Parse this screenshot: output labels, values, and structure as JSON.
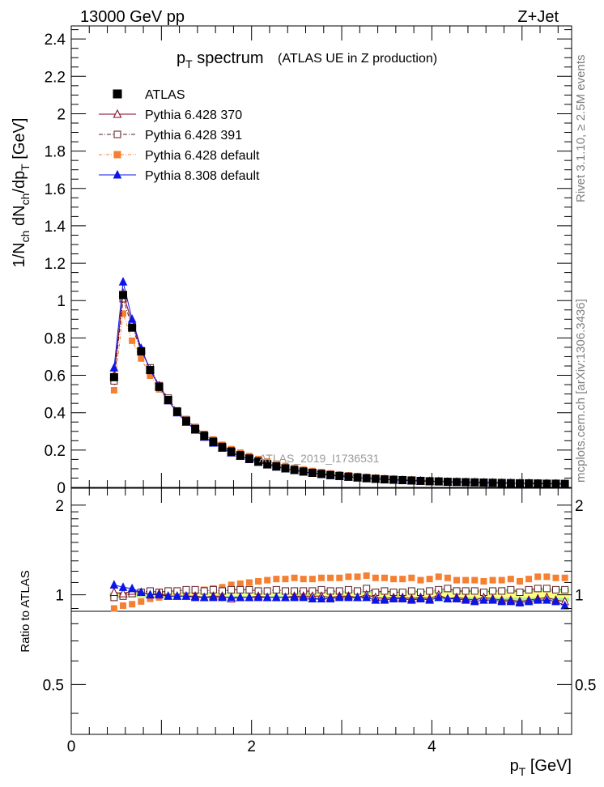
{
  "header": {
    "left": "13000 GeV pp",
    "right": "Z+Jet"
  },
  "side": {
    "top": "Rivet 3.1.10, ≥ 2.5M events",
    "bottom": "mcplots.cern.ch [arXiv:1306.3436]"
  },
  "chart_data": [
    {
      "type": "scatter",
      "title": "p_T spectrum",
      "subtitle": "(ATLAS UE in Z production)",
      "ylabel": "1/N_ch dN_ch/dp_T [GeV]",
      "watermark": "ATLAS_2019_I1736531",
      "xlim": [
        0,
        5.55
      ],
      "ylim": [
        0,
        2.47
      ],
      "yticks": [
        0,
        0.2,
        0.4,
        0.6,
        0.8,
        1,
        1.2,
        1.4,
        1.6,
        1.8,
        2,
        2.2,
        2.4
      ],
      "ytick_labels": [
        "0",
        "0.2",
        "0.4",
        "0.6",
        "0.8",
        "1",
        "1.2",
        "1.4",
        "1.6",
        "1.8",
        "2",
        "2.2",
        "2.4"
      ],
      "x": [
        0.475,
        0.575,
        0.675,
        0.775,
        0.875,
        0.975,
        1.075,
        1.175,
        1.275,
        1.375,
        1.475,
        1.575,
        1.675,
        1.775,
        1.875,
        1.975,
        2.075,
        2.175,
        2.275,
        2.375,
        2.475,
        2.575,
        2.675,
        2.775,
        2.875,
        2.975,
        3.075,
        3.175,
        3.275,
        3.375,
        3.475,
        3.575,
        3.675,
        3.775,
        3.875,
        3.975,
        4.075,
        4.175,
        4.275,
        4.375,
        4.475,
        4.575,
        4.675,
        4.775,
        4.875,
        4.975,
        5.075,
        5.175,
        5.275,
        5.375,
        5.475
      ],
      "reference": [
        0.59,
        1.03,
        0.855,
        0.728,
        0.628,
        0.538,
        0.468,
        0.405,
        0.355,
        0.312,
        0.275,
        0.243,
        0.215,
        0.191,
        0.171,
        0.153,
        0.138,
        0.124,
        0.112,
        0.102,
        0.093,
        0.085,
        0.078,
        0.072,
        0.066,
        0.061,
        0.057,
        0.053,
        0.049,
        0.046,
        0.043,
        0.041,
        0.039,
        0.037,
        0.035,
        0.033,
        0.032,
        0.03,
        0.029,
        0.028,
        0.027,
        0.026,
        0.025,
        0.024,
        0.023,
        0.022,
        0.022,
        0.021,
        0.02,
        0.02,
        0.019
      ],
      "series": [
        {
          "name": "ATLAS",
          "values": [
            0.59,
            1.03,
            0.855,
            0.728,
            0.628,
            0.538,
            0.468,
            0.405,
            0.355,
            0.312,
            0.275,
            0.243,
            0.215,
            0.191,
            0.171,
            0.153,
            0.138,
            0.124,
            0.112,
            0.102,
            0.093,
            0.085,
            0.078,
            0.072,
            0.066,
            0.061,
            0.057,
            0.053,
            0.049,
            0.046,
            0.043,
            0.041,
            0.039,
            0.037,
            0.035,
            0.033,
            0.032,
            0.03,
            0.029,
            0.028,
            0.027,
            0.026,
            0.025,
            0.024,
            0.023,
            0.022,
            0.022,
            0.021,
            0.02,
            0.02,
            0.019
          ]
        },
        {
          "name": "Pythia 6.428 370",
          "values": [
            0.6,
            1.04,
            0.88,
            0.74,
            0.63,
            0.545,
            0.465,
            0.402,
            0.35,
            0.31,
            0.27,
            0.24,
            0.212,
            0.185,
            0.168,
            0.15,
            0.137,
            0.121,
            0.11,
            0.1,
            0.092,
            0.084,
            0.077,
            0.071,
            0.065,
            0.06,
            0.056,
            0.052,
            0.049,
            0.045,
            0.042,
            0.04,
            0.038,
            0.036,
            0.034,
            0.032,
            0.032,
            0.029,
            0.028,
            0.027,
            0.026,
            0.025,
            0.024,
            0.023,
            0.022,
            0.021,
            0.021,
            0.02,
            0.02,
            0.019,
            0.018
          ]
        },
        {
          "name": "Pythia 6.428 391",
          "values": [
            0.57,
            1.01,
            0.86,
            0.732,
            0.64,
            0.545,
            0.478,
            0.41,
            0.363,
            0.32,
            0.281,
            0.25,
            0.22,
            0.196,
            0.176,
            0.158,
            0.142,
            0.127,
            0.116,
            0.104,
            0.096,
            0.087,
            0.08,
            0.074,
            0.068,
            0.063,
            0.059,
            0.055,
            0.051,
            0.047,
            0.044,
            0.042,
            0.04,
            0.038,
            0.036,
            0.034,
            0.033,
            0.031,
            0.03,
            0.029,
            0.028,
            0.027,
            0.026,
            0.025,
            0.024,
            0.023,
            0.023,
            0.022,
            0.021,
            0.021,
            0.02
          ]
        },
        {
          "name": "Pythia 6.428 default",
          "values": [
            0.52,
            0.93,
            0.785,
            0.69,
            0.598,
            0.525,
            0.462,
            0.408,
            0.36,
            0.322,
            0.286,
            0.256,
            0.228,
            0.205,
            0.186,
            0.168,
            0.152,
            0.139,
            0.127,
            0.115,
            0.105,
            0.096,
            0.088,
            0.082,
            0.075,
            0.069,
            0.065,
            0.061,
            0.056,
            0.052,
            0.049,
            0.046,
            0.044,
            0.042,
            0.039,
            0.037,
            0.036,
            0.034,
            0.032,
            0.031,
            0.03,
            0.029,
            0.028,
            0.027,
            0.026,
            0.025,
            0.025,
            0.024,
            0.023,
            0.023,
            0.022
          ]
        },
        {
          "name": "Pythia 8.308 default",
          "values": [
            0.64,
            1.1,
            0.9,
            0.745,
            0.63,
            0.54,
            0.465,
            0.4,
            0.35,
            0.307,
            0.27,
            0.238,
            0.21,
            0.186,
            0.167,
            0.15,
            0.135,
            0.122,
            0.11,
            0.1,
            0.091,
            0.083,
            0.076,
            0.07,
            0.064,
            0.06,
            0.056,
            0.052,
            0.048,
            0.045,
            0.042,
            0.04,
            0.038,
            0.036,
            0.034,
            0.032,
            0.031,
            0.029,
            0.028,
            0.027,
            0.026,
            0.025,
            0.024,
            0.023,
            0.022,
            0.021,
            0.021,
            0.02,
            0.019,
            0.019,
            0.017
          ]
        }
      ]
    },
    {
      "type": "scatter",
      "ylabel": "Ratio to ATLAS",
      "xlabel": "p_T [GeV]",
      "xlim": [
        0,
        5.55
      ],
      "ylim": [
        0.34,
        2.28
      ],
      "xticks": [
        0,
        2,
        4
      ],
      "xtick_labels": [
        "0",
        "2",
        "4"
      ],
      "yticks": [
        0.5,
        1,
        2
      ],
      "ytick_labels": [
        "0.5",
        "1",
        "2"
      ],
      "x": [
        0.475,
        0.575,
        0.675,
        0.775,
        0.875,
        0.975,
        1.075,
        1.175,
        1.275,
        1.375,
        1.475,
        1.575,
        1.675,
        1.775,
        1.875,
        1.975,
        2.075,
        2.175,
        2.275,
        2.375,
        2.475,
        2.575,
        2.675,
        2.775,
        2.875,
        2.975,
        3.075,
        3.175,
        3.275,
        3.375,
        3.475,
        3.575,
        3.675,
        3.775,
        3.875,
        3.975,
        4.075,
        4.175,
        4.275,
        4.375,
        4.475,
        4.575,
        4.675,
        4.775,
        4.875,
        4.975,
        5.075,
        5.175,
        5.275,
        5.375,
        5.475
      ],
      "band_error": [
        0.02,
        0.02,
        0.02,
        0.02,
        0.02,
        0.02,
        0.02,
        0.02,
        0.02,
        0.02,
        0.02,
        0.02,
        0.02,
        0.02,
        0.02,
        0.02,
        0.02,
        0.02,
        0.02,
        0.02,
        0.02,
        0.03,
        0.03,
        0.03,
        0.03,
        0.03,
        0.03,
        0.03,
        0.03,
        0.03,
        0.03,
        0.035,
        0.035,
        0.035,
        0.035,
        0.035,
        0.04,
        0.04,
        0.04,
        0.04,
        0.04,
        0.04,
        0.045,
        0.045,
        0.045,
        0.045,
        0.045,
        0.05,
        0.05,
        0.05,
        0.05
      ],
      "series": [
        {
          "name": "Pythia 6.428 370",
          "values": [
            1.02,
            1.01,
            1.03,
            1.02,
            1.0,
            1.01,
            0.99,
            0.99,
            0.99,
            0.99,
            0.98,
            0.99,
            0.99,
            0.97,
            0.98,
            0.98,
            0.99,
            0.98,
            0.98,
            0.98,
            0.99,
            0.99,
            0.99,
            0.99,
            0.98,
            0.99,
            0.99,
            0.98,
            1.0,
            0.98,
            0.97,
            0.98,
            0.98,
            0.97,
            0.98,
            0.97,
            1.0,
            0.97,
            0.98,
            0.97,
            0.96,
            0.98,
            0.97,
            0.96,
            0.96,
            0.95,
            0.96,
            0.97,
            0.98,
            0.96,
            0.95
          ]
        },
        {
          "name": "Pythia 6.428 391",
          "values": [
            0.98,
            0.99,
            1.01,
            1.02,
            1.03,
            1.02,
            1.03,
            1.03,
            1.04,
            1.04,
            1.03,
            1.04,
            1.03,
            1.04,
            1.04,
            1.04,
            1.03,
            1.03,
            1.04,
            1.03,
            1.03,
            1.03,
            1.03,
            1.04,
            1.03,
            1.03,
            1.04,
            1.03,
            1.05,
            1.02,
            1.03,
            1.02,
            1.02,
            1.03,
            1.02,
            1.03,
            1.04,
            1.05,
            1.03,
            1.03,
            1.03,
            1.02,
            1.03,
            1.03,
            1.04,
            1.02,
            1.04,
            1.05,
            1.05,
            1.04,
            1.04
          ]
        },
        {
          "name": "Pythia 6.428 default",
          "values": [
            0.9,
            0.92,
            0.93,
            0.95,
            0.97,
            0.98,
            0.99,
            1.01,
            1.02,
            1.03,
            1.04,
            1.05,
            1.06,
            1.08,
            1.09,
            1.1,
            1.11,
            1.12,
            1.13,
            1.13,
            1.14,
            1.13,
            1.13,
            1.14,
            1.14,
            1.14,
            1.15,
            1.15,
            1.16,
            1.14,
            1.14,
            1.13,
            1.13,
            1.14,
            1.12,
            1.13,
            1.15,
            1.14,
            1.12,
            1.12,
            1.12,
            1.11,
            1.12,
            1.12,
            1.13,
            1.11,
            1.13,
            1.15,
            1.15,
            1.14,
            1.14
          ]
        },
        {
          "name": "Pythia 8.308 default",
          "values": [
            1.08,
            1.06,
            1.05,
            1.02,
            1.0,
            1.0,
            0.99,
            0.99,
            0.99,
            0.98,
            0.98,
            0.98,
            0.98,
            0.98,
            0.98,
            0.98,
            0.98,
            0.98,
            0.98,
            0.98,
            0.98,
            0.98,
            0.97,
            0.97,
            0.97,
            0.98,
            0.98,
            0.98,
            0.98,
            0.96,
            0.96,
            0.97,
            0.97,
            0.96,
            0.97,
            0.96,
            0.98,
            0.97,
            0.97,
            0.96,
            0.95,
            0.96,
            0.96,
            0.95,
            0.95,
            0.94,
            0.95,
            0.96,
            0.96,
            0.95,
            0.92
          ]
        }
      ]
    }
  ],
  "styles": {
    "colors": {
      "ATLAS": "#000000",
      "Pythia 6.428 370": "#7f0020",
      "Pythia 6.428 391": "#5a1a22",
      "Pythia 6.428 default": "#f58033",
      "Pythia 8.308 default": "#0b15e6"
    },
    "markers": {
      "ATLAS": "square-filled",
      "Pythia 6.428 370": "triangle-open",
      "Pythia 6.428 391": "square-open",
      "Pythia 6.428 default": "square-filled",
      "Pythia 8.308 default": "triangle-filled"
    },
    "band_inner": "#ffff80",
    "band_outer": "#a8f09c",
    "watermark_color": "#9a9a9a",
    "side_text_color": "#808080"
  }
}
